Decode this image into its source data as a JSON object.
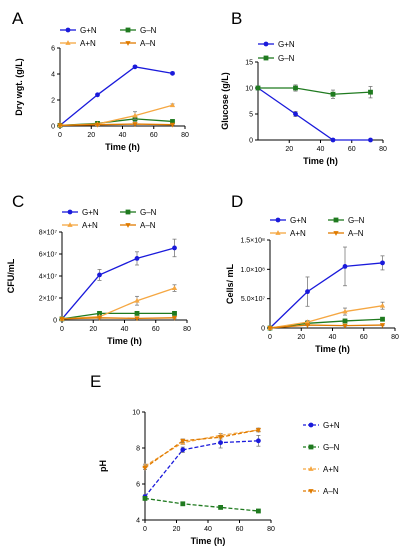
{
  "colors": {
    "G+N": "#1a1adb",
    "G-N": "#1f7a1f",
    "A+N": "#f5a742",
    "A-N": "#e07b00",
    "axis": "#000000",
    "errorbar": "#7a7a7a"
  },
  "chart_data": [
    {
      "panel": "A",
      "type": "line",
      "xlabel": "Time (h)",
      "ylabel": "Dry wgt. (g/L)",
      "xlim": [
        0,
        80
      ],
      "ylim": [
        0,
        6
      ],
      "xticks": [
        0,
        20,
        40,
        60,
        80
      ],
      "yticks": [
        0,
        2,
        4,
        6
      ],
      "ytick_labels": [
        "0",
        "2",
        "4",
        "6"
      ],
      "legend_position": "top-left",
      "legend_columns": 2,
      "series": [
        {
          "name": "G+N",
          "color_key": "G+N",
          "marker": "circle",
          "dashed": false,
          "x": [
            0,
            24,
            48,
            72
          ],
          "y": [
            0.05,
            2.4,
            4.55,
            4.05
          ],
          "err": [
            0,
            0.1,
            0.05,
            0.1
          ]
        },
        {
          "name": "G–N",
          "color_key": "G-N",
          "marker": "square",
          "dashed": false,
          "x": [
            0,
            24,
            48,
            72
          ],
          "y": [
            0.05,
            0.2,
            0.55,
            0.35
          ],
          "err": [
            0,
            0.05,
            0.2,
            0.1
          ]
        },
        {
          "name": "A+N",
          "color_key": "A+N",
          "marker": "triangle-up",
          "dashed": false,
          "x": [
            0,
            24,
            48,
            72
          ],
          "y": [
            0.05,
            0.15,
            0.8,
            1.6
          ],
          "err": [
            0,
            0.05,
            0.3,
            0.1
          ]
        },
        {
          "name": "A–N",
          "color_key": "A-N",
          "marker": "triangle-down",
          "dashed": false,
          "x": [
            0,
            24,
            48,
            72
          ],
          "y": [
            0.05,
            0.1,
            0.15,
            0.1
          ],
          "err": [
            0,
            0.02,
            0.05,
            0.02
          ]
        }
      ]
    },
    {
      "panel": "B",
      "type": "line",
      "xlabel": "Time (h)",
      "ylabel": "Glucose (g/L)",
      "xlim": [
        0,
        80
      ],
      "ylim": [
        0,
        15
      ],
      "xticks": [
        20,
        40,
        60,
        80
      ],
      "yticks": [
        0,
        5,
        10,
        15
      ],
      "ytick_labels": [
        "0",
        "5",
        "10",
        "15"
      ],
      "legend_position": "top-left",
      "legend_columns": 1,
      "series": [
        {
          "name": "G+N",
          "color_key": "G+N",
          "marker": "circle",
          "dashed": false,
          "x": [
            0,
            24,
            48,
            72
          ],
          "y": [
            10,
            5,
            0,
            0
          ],
          "err": [
            0,
            0.5,
            0,
            0
          ]
        },
        {
          "name": "G–N",
          "color_key": "G-N",
          "marker": "square",
          "dashed": false,
          "x": [
            0,
            24,
            48,
            72
          ],
          "y": [
            10,
            10,
            8.8,
            9.2
          ],
          "err": [
            0,
            0.6,
            0.8,
            1.1
          ]
        }
      ]
    },
    {
      "panel": "C",
      "type": "line",
      "xlabel": "Time (h)",
      "ylabel": "CFU/mL",
      "xlim": [
        0,
        80
      ],
      "ylim": [
        0,
        80000000
      ],
      "xticks": [
        0,
        20,
        40,
        60,
        80
      ],
      "yticks": [
        0,
        20000000,
        40000000,
        60000000,
        80000000
      ],
      "ytick_labels": [
        "0",
        "2×10⁷",
        "4×10⁷",
        "6×10⁷",
        "8×10⁷"
      ],
      "legend_position": "top-left",
      "legend_columns": 2,
      "series": [
        {
          "name": "G+N",
          "color_key": "G+N",
          "marker": "circle",
          "dashed": false,
          "x": [
            0,
            24,
            48,
            72
          ],
          "y": [
            1000000,
            41000000,
            56000000,
            65500000
          ],
          "err": [
            0,
            5000000,
            6000000,
            8000000
          ]
        },
        {
          "name": "G–N",
          "color_key": "G-N",
          "marker": "square",
          "dashed": false,
          "x": [
            0,
            24,
            48,
            72
          ],
          "y": [
            1000000,
            6000000,
            6000000,
            6000000
          ],
          "err": [
            0,
            1500000,
            1000000,
            1000000
          ]
        },
        {
          "name": "A+N",
          "color_key": "A+N",
          "marker": "triangle-up",
          "dashed": false,
          "x": [
            0,
            24,
            48,
            72
          ],
          "y": [
            1000000,
            3000000,
            17500000,
            29000000
          ],
          "err": [
            0,
            1000000,
            4000000,
            3000000
          ]
        },
        {
          "name": "A–N",
          "color_key": "A-N",
          "marker": "triangle-down",
          "dashed": false,
          "x": [
            0,
            24,
            48,
            72
          ],
          "y": [
            1000000,
            2000000,
            1500000,
            2000000
          ],
          "err": [
            0,
            500000,
            500000,
            500000
          ]
        }
      ]
    },
    {
      "panel": "D",
      "type": "line",
      "xlabel": "Time (h)",
      "ylabel": "Cells/ mL",
      "xlim": [
        0,
        80
      ],
      "ylim": [
        0,
        150000000
      ],
      "xticks": [
        0,
        20,
        40,
        60,
        80
      ],
      "yticks": [
        0,
        50000000,
        100000000,
        150000000
      ],
      "ytick_labels": [
        "0",
        "5.0×10⁷",
        "1.0×10⁸",
        "1.5×10⁸"
      ],
      "legend_position": "top-left",
      "legend_columns": 2,
      "series": [
        {
          "name": "G+N",
          "color_key": "G+N",
          "marker": "circle",
          "dashed": false,
          "x": [
            0,
            24,
            48,
            72
          ],
          "y": [
            0,
            62000000,
            105000000,
            111000000
          ],
          "err": [
            0,
            25000000,
            33000000,
            12000000
          ]
        },
        {
          "name": "G–N",
          "color_key": "G-N",
          "marker": "square",
          "dashed": false,
          "x": [
            0,
            24,
            48,
            72
          ],
          "y": [
            0,
            8000000,
            12000000,
            15000000
          ],
          "err": [
            0,
            3000000,
            3000000,
            3000000
          ]
        },
        {
          "name": "A+N",
          "color_key": "A+N",
          "marker": "triangle-up",
          "dashed": false,
          "x": [
            0,
            24,
            48,
            72
          ],
          "y": [
            0,
            10000000,
            28000000,
            38000000
          ],
          "err": [
            0,
            3000000,
            6000000,
            6000000
          ]
        },
        {
          "name": "A–N",
          "color_key": "A-N",
          "marker": "triangle-down",
          "dashed": false,
          "x": [
            0,
            24,
            48,
            72
          ],
          "y": [
            0,
            5000000,
            4000000,
            5000000
          ],
          "err": [
            0,
            1000000,
            1000000,
            1000000
          ]
        }
      ]
    },
    {
      "panel": "E",
      "type": "line",
      "xlabel": "Time (h)",
      "ylabel": "pH",
      "xlim": [
        0,
        80
      ],
      "ylim": [
        4,
        10
      ],
      "xticks": [
        0,
        20,
        40,
        60,
        80
      ],
      "yticks": [
        4,
        6,
        8,
        10
      ],
      "ytick_labels": [
        "4",
        "6",
        "8",
        "10"
      ],
      "legend_position": "right",
      "legend_columns": 1,
      "series": [
        {
          "name": "G+N",
          "color_key": "G+N",
          "marker": "circle",
          "dashed": true,
          "x": [
            0,
            24,
            48,
            72
          ],
          "y": [
            5.3,
            7.9,
            8.3,
            8.4
          ],
          "err": [
            0.1,
            0.15,
            0.3,
            0.3
          ]
        },
        {
          "name": "G–N",
          "color_key": "G-N",
          "marker": "square",
          "dashed": true,
          "x": [
            0,
            24,
            48,
            72
          ],
          "y": [
            5.2,
            4.9,
            4.7,
            4.5
          ],
          "err": [
            0.05,
            0.05,
            0.05,
            0.05
          ]
        },
        {
          "name": "A+N",
          "color_key": "A+N",
          "marker": "triangle-up",
          "dashed": true,
          "x": [
            0,
            24,
            48,
            72
          ],
          "y": [
            7.0,
            8.3,
            8.7,
            9.0
          ],
          "err": [
            0.1,
            0.1,
            0.1,
            0.1
          ]
        },
        {
          "name": "A–N",
          "color_key": "A-N",
          "marker": "triangle-down",
          "dashed": true,
          "x": [
            0,
            24,
            48,
            72
          ],
          "y": [
            6.9,
            8.4,
            8.6,
            9.0
          ],
          "err": [
            0.1,
            0.1,
            0.1,
            0.1
          ]
        }
      ]
    }
  ]
}
